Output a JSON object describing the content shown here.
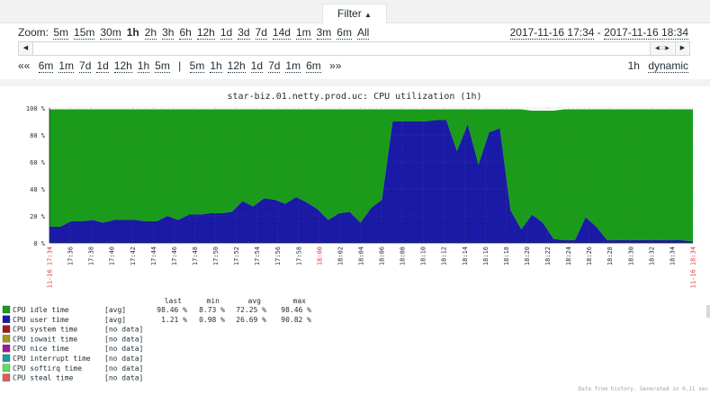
{
  "filter": {
    "label": "Filter",
    "arrow": "▲"
  },
  "zoom": {
    "label": "Zoom:",
    "options": [
      "5m",
      "15m",
      "30m",
      "1h",
      "2h",
      "3h",
      "6h",
      "12h",
      "1d",
      "3d",
      "7d",
      "14d",
      "1m",
      "3m",
      "6m",
      "All"
    ],
    "selected": "1h"
  },
  "time_range": {
    "from": "2017-11-16 17:34",
    "separator": " - ",
    "to": "2017-11-16 18:34"
  },
  "nav": {
    "back_symbol": "««",
    "back_options": [
      "6m",
      "1m",
      "7d",
      "1d",
      "12h",
      "1h",
      "5m"
    ],
    "divider": "|",
    "forward_options": [
      "5m",
      "1h",
      "12h",
      "1d",
      "7d",
      "1m",
      "6m"
    ],
    "forward_symbol": "»»"
  },
  "period": {
    "value": "1h",
    "mode": "dynamic"
  },
  "scrollbar": {
    "left_icon": "◀",
    "right_icon": "▶",
    "handle_icon": "◀::::▶"
  },
  "graph": {
    "title": "star-biz.01.netty.prod.uc: CPU utilization (1h)",
    "stats_headers": [
      "last",
      "min",
      "avg",
      "max"
    ],
    "legend": [
      {
        "label": "CPU idle time",
        "func": "[avg]",
        "last": "98.46 %",
        "min": "8.73 %",
        "avg": "72.25 %",
        "max": "98.46 %",
        "color": "#1a9c1a"
      },
      {
        "label": "CPU user time",
        "func": "[avg]",
        "last": "1.21 %",
        "min": "0.98 %",
        "avg": "26.69 %",
        "max": "90.82 %",
        "color": "#1a1aa6"
      },
      {
        "label": "CPU system time",
        "func": "[no data]",
        "last": "",
        "min": "",
        "avg": "",
        "max": "",
        "color": "#a61a1a"
      },
      {
        "label": "CPU iowait time",
        "func": "[no data]",
        "last": "",
        "min": "",
        "avg": "",
        "max": "",
        "color": "#9c9c1a"
      },
      {
        "label": "CPU nice time",
        "func": "[no data]",
        "last": "",
        "min": "",
        "avg": "",
        "max": "",
        "color": "#9c1a9c"
      },
      {
        "label": "CPU interrupt time",
        "func": "[no data]",
        "last": "",
        "min": "",
        "avg": "",
        "max": "",
        "color": "#1a9c9c"
      },
      {
        "label": "CPU softirq time",
        "func": "[no data]",
        "last": "",
        "min": "",
        "avg": "",
        "max": "",
        "color": "#5ce05c"
      },
      {
        "label": "CPU steal time",
        "func": "[no data]",
        "last": "",
        "min": "",
        "avg": "",
        "max": "",
        "color": "#e05c5c"
      }
    ],
    "footer": "Data from history. Generated in 0.11 sec"
  },
  "chart_data": {
    "type": "area",
    "title": "star-biz.01.netty.prod.uc: CPU utilization (1h)",
    "y_ticks": [
      "0 %",
      "20 %",
      "40 %",
      "60 %",
      "80 %",
      "100 %"
    ],
    "ylim": [
      0,
      100
    ],
    "x_ticks": [
      "17:36",
      "17:38",
      "17:40",
      "17:42",
      "17:44",
      "17:46",
      "17:48",
      "17:50",
      "17:52",
      "17:54",
      "17:56",
      "17:58",
      "18:00",
      "18:02",
      "18:04",
      "18:06",
      "18:08",
      "18:10",
      "18:12",
      "18:14",
      "18:16",
      "18:18",
      "18:20",
      "18:22",
      "18:24",
      "18:26",
      "18:28",
      "18:30",
      "18:32",
      "18:34"
    ],
    "x_start_label": "11-16 17:34",
    "x_end_label": "11-16 18:34",
    "highlight_tick": "18:00",
    "series": [
      {
        "name": "CPU user time",
        "color": "#1a1aa6",
        "x": [
          0,
          1,
          2,
          3,
          4,
          5,
          6,
          7,
          8,
          9,
          10,
          11,
          12,
          13,
          14,
          15,
          16,
          17,
          18,
          19,
          20,
          21,
          22,
          23,
          24,
          25,
          26,
          27,
          28,
          29,
          30,
          31,
          32,
          33,
          34,
          35,
          36,
          37,
          38,
          39,
          40,
          41,
          42,
          43,
          44,
          45,
          46,
          47,
          48,
          49,
          50,
          51,
          52,
          53,
          54,
          55,
          56,
          57,
          58,
          59,
          60
        ],
        "values": [
          12,
          12,
          16,
          16,
          17,
          15,
          17,
          17,
          17,
          16,
          16,
          20,
          17,
          21,
          21,
          22,
          22,
          23,
          31,
          27,
          33,
          32,
          29,
          34,
          30,
          25,
          17,
          22,
          23,
          15,
          26,
          32,
          90,
          90,
          90,
          90,
          91,
          91,
          68,
          88,
          58,
          82,
          85,
          24,
          10,
          21,
          15,
          3,
          2,
          2,
          19,
          12,
          2,
          2,
          2,
          2,
          2,
          2,
          2,
          2,
          1
        ]
      },
      {
        "name": "CPU idle time",
        "color": "#1a9c1a",
        "x": [
          0,
          1,
          2,
          3,
          4,
          5,
          6,
          7,
          8,
          9,
          10,
          11,
          12,
          13,
          14,
          15,
          16,
          17,
          18,
          19,
          20,
          21,
          22,
          23,
          24,
          25,
          26,
          27,
          28,
          29,
          30,
          31,
          32,
          33,
          34,
          35,
          36,
          37,
          38,
          39,
          40,
          41,
          42,
          43,
          44,
          45,
          46,
          47,
          48,
          49,
          50,
          51,
          52,
          53,
          54,
          55,
          56,
          57,
          58,
          59,
          60
        ],
        "values": [
          87,
          87,
          83,
          83,
          82,
          84,
          82,
          82,
          82,
          83,
          83,
          79,
          82,
          78,
          78,
          77,
          77,
          76,
          68,
          72,
          66,
          67,
          70,
          65,
          69,
          74,
          82,
          77,
          76,
          84,
          73,
          67,
          9,
          9,
          9,
          9,
          8,
          8,
          31,
          11,
          41,
          17,
          14,
          75,
          89,
          77,
          83,
          95,
          97,
          97,
          80,
          87,
          97,
          97,
          97,
          97,
          97,
          97,
          97,
          97,
          98
        ]
      }
    ],
    "grid": true
  }
}
